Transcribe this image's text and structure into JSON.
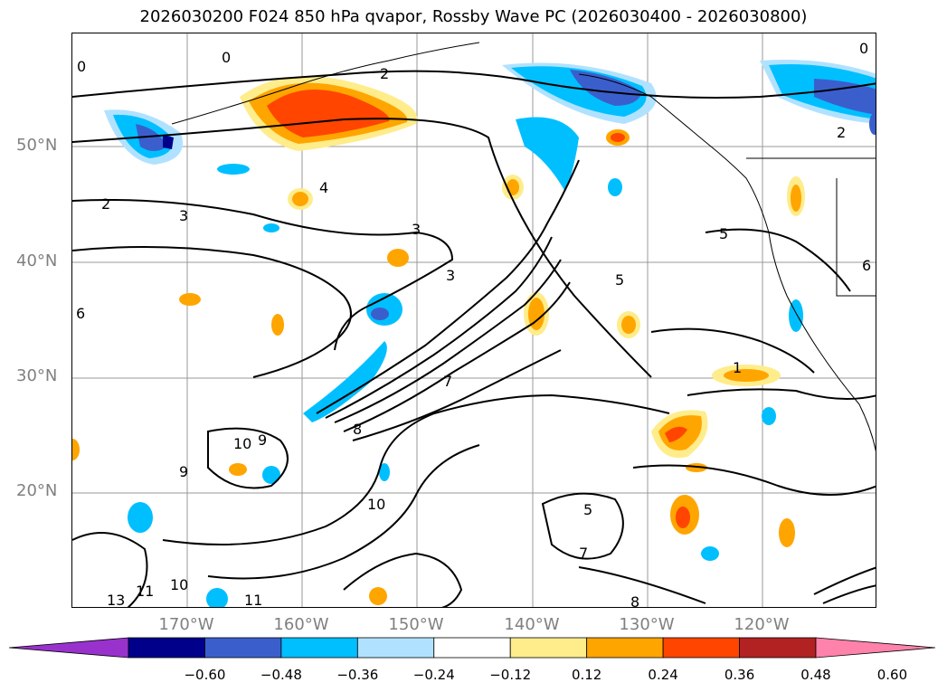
{
  "map": {
    "title": "2026030200 F024 850 hPa qvapor, Rossby Wave PC (2026030400 - 2026030800)",
    "lat_labels": [
      "50°N",
      "40°N",
      "30°N",
      "20°N"
    ],
    "lon_labels": [
      "170°W",
      "160°W",
      "150°W",
      "140°W",
      "130°W",
      "120°W"
    ],
    "contour_labels": [
      "0",
      "0",
      "0",
      "2",
      "2",
      "2",
      "3",
      "3",
      "3",
      "4",
      "5",
      "5",
      "5",
      "6",
      "6",
      "7",
      "8",
      "9",
      "9",
      "10",
      "10",
      "10",
      "11",
      "11",
      "13",
      "1",
      "7",
      "8"
    ],
    "shading_colors": {
      "neg_extreme": "#9932cc",
      "neg_060": "#00008b",
      "neg_048": "#3a5fcd",
      "neg_036": "#00bfff",
      "neg_024": "#b0e2ff",
      "neutral": "#ffffff",
      "pos_012": "#ffec8b",
      "pos_024": "#ffa500",
      "pos_036": "#ff4500",
      "pos_048": "#b22222",
      "pos_extreme": "#ff82ab"
    }
  },
  "colorbar": {
    "tick_labels": [
      "−0.60",
      "−0.48",
      "−0.36",
      "−0.24",
      "−0.12",
      "0.12",
      "0.24",
      "0.36",
      "0.48",
      "0.60"
    ],
    "colors": [
      "#9932cc",
      "#00008b",
      "#3a5fcd",
      "#00bfff",
      "#b0e2ff",
      "#ffffff",
      "#ffec8b",
      "#ffa500",
      "#ff4500",
      "#b22222",
      "#ff82ab"
    ]
  }
}
